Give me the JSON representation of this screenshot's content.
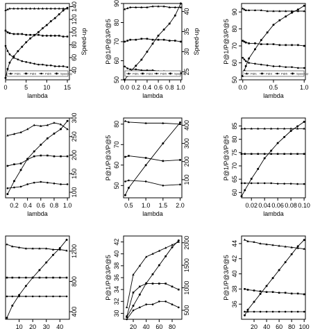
{
  "chart_data": [
    {
      "type": "line",
      "x": [
        0,
        0.5,
        1,
        2,
        3,
        4,
        5,
        6,
        7,
        8,
        9,
        10,
        11,
        12,
        13,
        14,
        15
      ],
      "xlim": [
        0,
        15.5
      ],
      "xticks": [
        0,
        5,
        10,
        15
      ],
      "xlabel": "lambda",
      "ylim": [
        45,
        90
      ],
      "y2lim": [
        25,
        145
      ],
      "y2ticks": [
        40,
        60,
        80,
        100,
        120,
        140
      ],
      "y2label": "Speed-up",
      "legend": "bottom",
      "series": [
        {
          "name": "P@1",
          "color": "#000000",
          "values": [
            86,
            86.5,
            87,
            87,
            87,
            87,
            87,
            87,
            87,
            87,
            87,
            87,
            87,
            87,
            87,
            87,
            87
          ]
        },
        {
          "name": "P@3",
          "color": "#000000",
          "values": [
            74,
            73,
            72.5,
            72,
            72,
            72,
            71.5,
            71.5,
            71.5,
            71.5,
            71,
            71,
            71,
            71,
            71,
            70.5,
            70.5
          ]
        },
        {
          "name": "P@5",
          "color": "#000000",
          "values": [
            65,
            62,
            60,
            58,
            57,
            56,
            55.5,
            55,
            54.5,
            54,
            54,
            53.5,
            53.5,
            53,
            53,
            53,
            52.5
          ]
        },
        {
          "name": "Speed-up",
          "color": "#000000",
          "axis": "y2",
          "values": [
            28,
            42,
            52,
            62,
            70,
            77,
            84,
            90,
            95,
            100,
            106,
            111,
            117,
            122,
            128,
            134,
            138
          ]
        }
      ]
    },
    {
      "type": "line",
      "x": [
        0,
        0.05,
        0.1,
        0.2,
        0.3,
        0.4,
        0.5,
        0.6,
        0.7,
        0.8,
        0.9,
        1.0
      ],
      "xlim": [
        -0.02,
        1.02
      ],
      "xticks": [
        {
          "value": 0,
          "label": "0.0"
        },
        0.2,
        0.4,
        0.6,
        0.8,
        {
          "value": 1,
          "label": "1.0"
        }
      ],
      "xlabel": "lambda",
      "ylim": [
        50,
        90
      ],
      "yticks": [
        50,
        60,
        70,
        80,
        90
      ],
      "ylabel": "P@1/P@3/P@5",
      "y2lim": [
        23,
        42
      ],
      "y2ticks": [
        25,
        30,
        35,
        40
      ],
      "y2label": "Speed-up",
      "legend": "bottom",
      "series": [
        {
          "name": "P@1",
          "color": "#000000",
          "values": [
            87,
            87.5,
            88,
            88,
            88,
            88,
            88.5,
            88.5,
            88.5,
            88,
            88,
            88
          ]
        },
        {
          "name": "P@3",
          "color": "#000000",
          "values": [
            70,
            70.5,
            71,
            71,
            71.5,
            71.5,
            71,
            71,
            71,
            70.5,
            70.5,
            70
          ]
        },
        {
          "name": "P@5",
          "color": "#000000",
          "values": [
            57,
            56,
            55.5,
            55.5,
            55,
            55,
            55,
            54.5,
            54.5,
            54,
            54,
            53.5
          ]
        },
        {
          "name": "Speed-up",
          "color": "#000000",
          "axis": "y2",
          "values": [
            23,
            24,
            25,
            26.5,
            28,
            30,
            32,
            34,
            35.5,
            37,
            39,
            42
          ]
        }
      ]
    },
    {
      "type": "line",
      "x": [
        0,
        0.025,
        0.05,
        0.1,
        0.2,
        0.3,
        0.4,
        0.5,
        0.6,
        0.7,
        0.8,
        0.9,
        1.0
      ],
      "xlim": [
        -0.02,
        1.02
      ],
      "xticks": [
        {
          "value": 0,
          "label": "0.0"
        },
        0.5,
        {
          "value": 1,
          "label": "1.0"
        }
      ],
      "xlabel": "lambda",
      "ylim": [
        50,
        95
      ],
      "yticks": [
        50,
        60,
        70,
        80,
        90
      ],
      "ylabel": "P@1/P@3/P@5",
      "y2lim": [
        0,
        100
      ],
      "legend": "bottom",
      "series": [
        {
          "name": "P@1",
          "color": "#000000",
          "values": [
            92,
            91.5,
            91,
            91,
            91,
            91,
            90.5,
            90.5,
            90.5,
            90.5,
            90.5,
            90.5,
            90.5
          ]
        },
        {
          "name": "P@3",
          "color": "#000000",
          "values": [
            73,
            72.5,
            72,
            71.5,
            71.5,
            71,
            71,
            71,
            70.5,
            70.5,
            70.5,
            70.5,
            70
          ]
        },
        {
          "name": "P@5",
          "color": "#000000",
          "values": [
            63,
            62,
            61,
            60,
            59.5,
            59,
            58.5,
            58,
            58,
            57.5,
            57.5,
            57,
            57
          ]
        },
        {
          "name": "Speed-up",
          "color": "#000000",
          "axis": "y2",
          "values": [
            5,
            12,
            18,
            28,
            40,
            52,
            62,
            72,
            78,
            83,
            88,
            92,
            97
          ]
        }
      ]
    },
    {
      "type": "line",
      "x": [
        0.1,
        0.2,
        0.3,
        0.4,
        0.5,
        0.6,
        0.7,
        0.8,
        0.9,
        1.0
      ],
      "xlim": [
        0.07,
        1.03
      ],
      "xticks": [
        0.2,
        0.4,
        0.6,
        0.8,
        {
          "value": 1,
          "label": "1.0"
        }
      ],
      "xlabel": "lambda",
      "ylim": [
        40,
        90
      ],
      "y2lim": [
        85,
        300
      ],
      "y2ticks": [
        100,
        150,
        200,
        250,
        300
      ],
      "series": [
        {
          "color": "#000000",
          "values": [
            79,
            80,
            81,
            83,
            85.5,
            85,
            85.5,
            87,
            86,
            83
          ]
        },
        {
          "color": "#000000",
          "values": [
            60,
            61,
            61.5,
            64,
            66,
            66.5,
            66.5,
            66,
            66,
            66
          ]
        },
        {
          "color": "#000000",
          "values": [
            46,
            46.5,
            47,
            48.5,
            49.5,
            50,
            49.5,
            49,
            48.5,
            48.5
          ]
        },
        {
          "color": "#000000",
          "axis": "y2",
          "values": [
            95,
            130,
            160,
            190,
            210,
            228,
            245,
            258,
            270,
            292
          ]
        }
      ]
    },
    {
      "type": "line",
      "x": [
        0.4,
        0.5,
        1.0,
        1.5,
        2.0
      ],
      "xlim": [
        0.35,
        2.05
      ],
      "xticks": [
        0.5,
        {
          "value": 1,
          "label": "1.0"
        },
        1.5,
        {
          "value": 2,
          "label": "2.0"
        }
      ],
      "xlabel": "lambda",
      "ylim": [
        44,
        83
      ],
      "yticks": [
        50,
        60,
        70,
        80
      ],
      "ylabel": "P@1/P@3/P@5",
      "y2lim": [
        0,
        440
      ],
      "y2ticks": [
        100,
        200,
        300,
        400
      ],
      "series": [
        {
          "color": "#000000",
          "values": [
            81.5,
            81,
            80.5,
            80.5,
            80
          ]
        },
        {
          "color": "#000000",
          "values": [
            64,
            64.5,
            63.5,
            62,
            62.5
          ]
        },
        {
          "color": "#000000",
          "values": [
            52,
            52.5,
            52,
            50,
            50.5
          ]
        },
        {
          "color": "#000000",
          "axis": "y2",
          "values": [
            15,
            55,
            180,
            300,
            415
          ]
        }
      ]
    },
    {
      "type": "line",
      "x": [
        0.005,
        0.01,
        0.02,
        0.03,
        0.04,
        0.05,
        0.06,
        0.07,
        0.08,
        0.09,
        0.1
      ],
      "xlim": [
        0.005,
        0.102
      ],
      "xticks": [
        0.02,
        0.04,
        0.06,
        0.08,
        {
          "value": 0.1,
          "label": "0.10"
        }
      ],
      "xlabel": "lambda",
      "ylim": [
        58,
        88
      ],
      "yticks": [
        60,
        65,
        70,
        75,
        80,
        85
      ],
      "ylabel": "P@1/P@3/P@5",
      "y2lim": [
        0,
        105
      ],
      "series": [
        {
          "color": "#000000",
          "values": [
            84,
            84,
            84,
            84,
            84,
            84,
            84,
            84,
            84,
            84,
            84
          ]
        },
        {
          "color": "#000000",
          "values": [
            74.5,
            74.5,
            74.5,
            74.5,
            74.5,
            74.5,
            74.5,
            74.5,
            74.5,
            74.5,
            74.5
          ]
        },
        {
          "color": "#000000",
          "values": [
            63.5,
            63.5,
            63.5,
            63.5,
            63.5,
            63.5,
            63.3,
            63.3,
            63.3,
            63.2,
            63.2
          ]
        },
        {
          "color": "#000000",
          "axis": "y2",
          "values": [
            2,
            10,
            25,
            38,
            52,
            62,
            72,
            80,
            88,
            94,
            100
          ]
        }
      ]
    },
    {
      "type": "line",
      "x": [
        1,
        5,
        10,
        15,
        20,
        25,
        30,
        35,
        40,
        45
      ],
      "xlim": [
        0,
        47
      ],
      "xticks": [
        10,
        20,
        30,
        40
      ],
      "xlabel": "lambda",
      "ylim": [
        30,
        70
      ],
      "y2lim": [
        300,
        1400
      ],
      "y2ticks": [
        400,
        800,
        1200
      ],
      "series": [
        {
          "color": "#000000",
          "values": [
            66,
            65,
            64.5,
            64,
            64,
            64,
            64,
            63.5,
            63.5,
            63
          ]
        },
        {
          "color": "#000000",
          "values": [
            50,
            50,
            50,
            50,
            50,
            50,
            50,
            50,
            50,
            50
          ]
        },
        {
          "color": "#000000",
          "values": [
            41,
            41,
            41,
            41,
            41,
            41,
            41,
            41,
            41,
            41
          ]
        },
        {
          "color": "#000000",
          "axis": "y2",
          "values": [
            320,
            480,
            620,
            740,
            850,
            950,
            1050,
            1150,
            1240,
            1350
          ]
        }
      ]
    },
    {
      "type": "line",
      "x": [
        10,
        20,
        30,
        40,
        50,
        60,
        70,
        80,
        90
      ],
      "xlim": [
        5,
        95
      ],
      "xticks": [
        20,
        40,
        60,
        80
      ],
      "xlabel": "lambda",
      "ylim": [
        29,
        43
      ],
      "yticks": [
        30,
        32,
        34,
        36,
        38,
        40,
        42
      ],
      "ylabel": "P@1/P@3/P@5",
      "y2lim": [
        300,
        2150
      ],
      "y2ticks": [
        500,
        1000,
        1500,
        2000
      ],
      "series": [
        {
          "color": "#000000",
          "values": [
            31,
            36.5,
            38,
            39.5,
            40,
            40.5,
            41,
            41.5,
            42
          ]
        },
        {
          "color": "#000000",
          "values": [
            29.5,
            33.5,
            34.5,
            35,
            35,
            35,
            35,
            34.5,
            34
          ]
        },
        {
          "color": "#000000",
          "values": [
            29,
            30.5,
            31,
            31.5,
            31.5,
            32,
            32,
            31.5,
            31
          ]
        },
        {
          "color": "#000000",
          "axis": "y2",
          "values": [
            350,
            600,
            850,
            1100,
            1300,
            1500,
            1700,
            1900,
            2050
          ]
        }
      ]
    },
    {
      "type": "line",
      "x": [
        5,
        10,
        20,
        30,
        40,
        50,
        60,
        70,
        80,
        90,
        100
      ],
      "xlim": [
        0,
        102
      ],
      "xticks": [
        20,
        40,
        60,
        80,
        100
      ],
      "xlabel": "lambda",
      "ylim": [
        34,
        45
      ],
      "yticks": [
        36,
        38,
        40,
        42,
        44
      ],
      "ylabel": "P@1/P@3/P@5",
      "y2lim": [
        0,
        105
      ],
      "series": [
        {
          "color": "#000000",
          "values": [
            44.5,
            44.3,
            44.2,
            44,
            43.9,
            43.8,
            43.7,
            43.6,
            43.5,
            43.4,
            43.3
          ]
        },
        {
          "color": "#000000",
          "values": [
            38,
            37.9,
            37.8,
            37.7,
            37.6,
            37.6,
            37.5,
            37.5,
            37.4,
            37.4,
            37.3
          ]
        },
        {
          "color": "#000000",
          "values": [
            35,
            35,
            35,
            35,
            35,
            35,
            35,
            35,
            35,
            35,
            35
          ]
        },
        {
          "color": "#000000",
          "axis": "y2",
          "values": [
            5,
            12,
            22,
            32,
            42,
            52,
            62,
            72,
            82,
            92,
            100
          ]
        }
      ]
    }
  ]
}
